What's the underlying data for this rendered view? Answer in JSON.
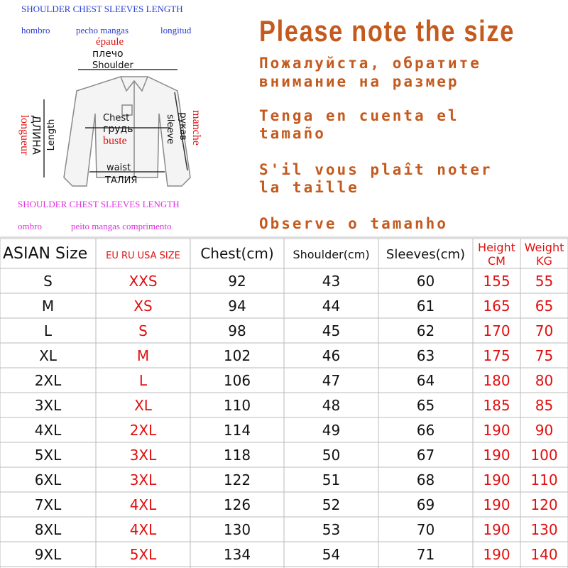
{
  "diagram": {
    "labels": [
      "SHOULDER CHEST SLEEVES LENGTH",
      "hombro",
      "pecho mangas",
      "longitud",
      "épaule",
      "плечо",
      "Shoulder",
      "ДЛИНА",
      "longueur",
      "Length",
      "Chest",
      "грудь",
      "buste",
      "waist",
      "ТАЛИЯ",
      "sleeve",
      "рукав",
      "manche",
      "SHOULDER CHEST SLEEVES LENGTH",
      "ombro",
      "peito mangas comprimento"
    ]
  },
  "notes": [
    [
      "Please note the size"
    ],
    [
      "Пожалуйста, обратите",
      "внимание на размер"
    ],
    [
      "Tenga en cuenta el",
      "tamaño"
    ],
    [
      "S'il vous plaît noter",
      "la taille"
    ],
    [
      "Observe o tamanho"
    ]
  ],
  "table": {
    "header": [
      "ASIAN Size",
      "EU RU USA SIZE",
      "Chest(cm)",
      "Shoulder(cm)",
      "Sleeves(cm)",
      [
        "Height",
        "CM"
      ],
      [
        "Weight",
        "KG"
      ]
    ],
    "rows": [
      [
        "S",
        "XXS",
        92,
        43,
        60,
        155,
        55
      ],
      [
        "M",
        "XS",
        94,
        44,
        61,
        165,
        65
      ],
      [
        "L",
        "S",
        98,
        45,
        62,
        170,
        70
      ],
      [
        "XL",
        "M",
        102,
        46,
        63,
        175,
        75
      ],
      [
        "2XL",
        "L",
        106,
        47,
        64,
        180,
        80
      ],
      [
        "3XL",
        "XL",
        110,
        48,
        65,
        185,
        85
      ],
      [
        "4XL",
        "2XL",
        114,
        49,
        66,
        190,
        90
      ],
      [
        "5XL",
        "3XL",
        118,
        50,
        67,
        190,
        100
      ],
      [
        "6XL",
        "3XL",
        122,
        51,
        68,
        190,
        110
      ],
      [
        "7XL",
        "4XL",
        126,
        52,
        69,
        190,
        120
      ],
      [
        "8XL",
        "4XL",
        130,
        53,
        70,
        190,
        130
      ],
      [
        "9XL",
        "5XL",
        134,
        54,
        71,
        190,
        140
      ]
    ]
  }
}
